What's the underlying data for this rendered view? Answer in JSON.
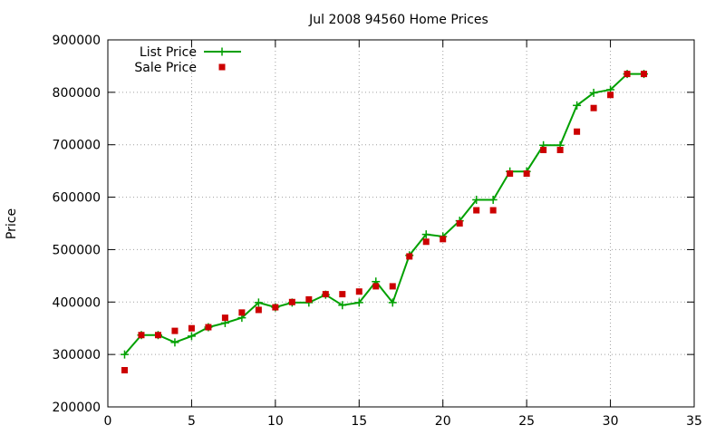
{
  "chart_data": {
    "type": "line",
    "title": "Jul 2008 94560 Home Prices",
    "xlabel": "",
    "ylabel": "Price",
    "xlim": [
      0,
      35
    ],
    "ylim": [
      200000,
      900000
    ],
    "x_ticks": [
      0,
      5,
      10,
      15,
      20,
      25,
      30,
      35
    ],
    "y_ticks": [
      200000,
      300000,
      400000,
      500000,
      600000,
      700000,
      800000,
      900000
    ],
    "grid": true,
    "legend_position": "top-left",
    "series": [
      {
        "name": "List Price",
        "style": "line-with-plus-markers",
        "color": "#00a000",
        "x": [
          1,
          2,
          3,
          4,
          5,
          6,
          7,
          8,
          9,
          10,
          11,
          12,
          13,
          14,
          15,
          16,
          17,
          18,
          19,
          20,
          21,
          22,
          23,
          24,
          25,
          26,
          27,
          28,
          29,
          30,
          31,
          32
        ],
        "values": [
          300000,
          337000,
          337000,
          323000,
          335000,
          352000,
          360000,
          370000,
          399000,
          390000,
          399000,
          399000,
          414000,
          394000,
          399000,
          439000,
          399000,
          489000,
          529000,
          525000,
          555000,
          595000,
          595000,
          649000,
          649000,
          699000,
          699000,
          775000,
          799000,
          805000,
          835000,
          835000
        ]
      },
      {
        "name": "Sale Price",
        "style": "square-markers",
        "color": "#cc0000",
        "x": [
          1,
          2,
          3,
          4,
          5,
          6,
          7,
          8,
          9,
          10,
          11,
          12,
          13,
          14,
          15,
          16,
          17,
          18,
          19,
          20,
          21,
          22,
          23,
          24,
          25,
          26,
          27,
          28,
          29,
          30,
          31,
          32
        ],
        "values": [
          270000,
          337000,
          337000,
          345000,
          350000,
          352000,
          370000,
          380000,
          385000,
          390000,
          400000,
          405000,
          415000,
          415000,
          420000,
          430000,
          430000,
          487000,
          515000,
          520000,
          550000,
          575000,
          575000,
          645000,
          645000,
          690000,
          690000,
          725000,
          770000,
          795000,
          835000,
          835000
        ]
      }
    ]
  }
}
